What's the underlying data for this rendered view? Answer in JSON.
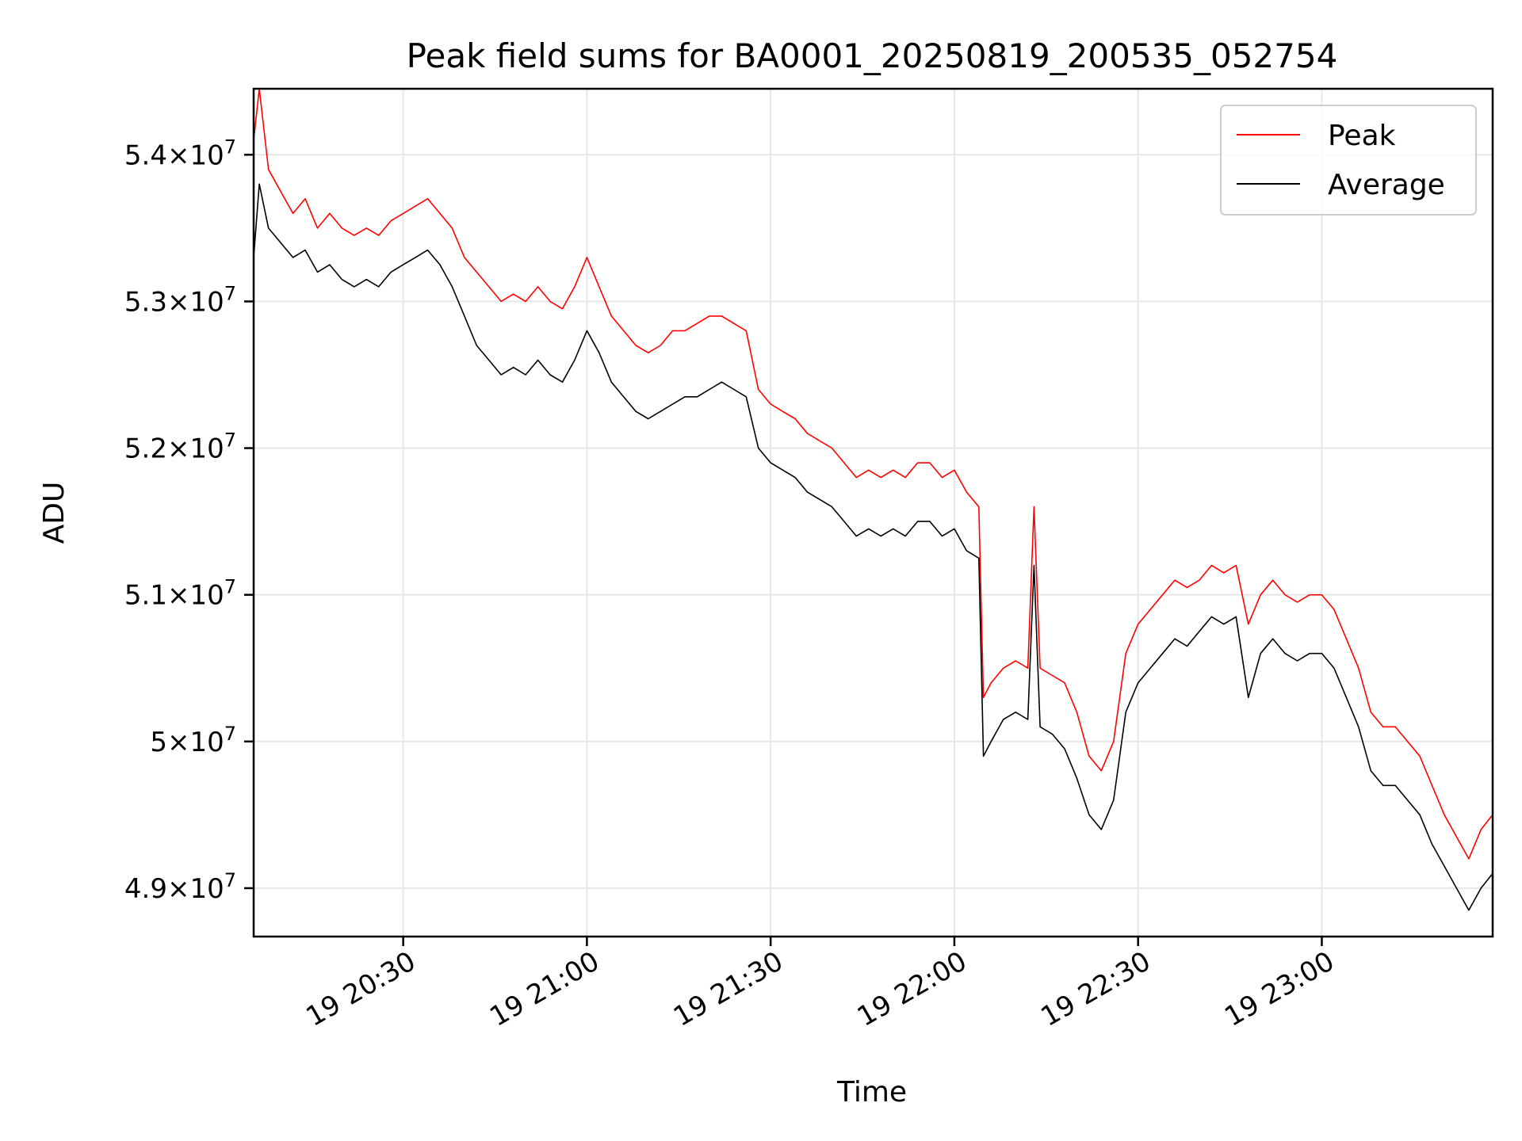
{
  "chart_data": {
    "type": "line",
    "title": "Peak field sums for BA0001_20250819_200535_052754",
    "xlabel": "Time",
    "ylabel": "ADU",
    "x_range": [
      "2025-08-19 20:05:35",
      "2025-08-19 23:27:54"
    ],
    "ylim": [
      48670000,
      54450000
    ],
    "x_ticks": [
      {
        "time": "2025-08-19 20:30",
        "label": "19 20:30"
      },
      {
        "time": "2025-08-19 21:00",
        "label": "19 21:00"
      },
      {
        "time": "2025-08-19 21:30",
        "label": "19 21:30"
      },
      {
        "time": "2025-08-19 22:00",
        "label": "19 22:00"
      },
      {
        "time": "2025-08-19 22:30",
        "label": "19 22:30"
      },
      {
        "time": "2025-08-19 23:00",
        "label": "19 23:00"
      }
    ],
    "y_ticks": [
      {
        "value": 49000000,
        "mantissa": "4.9",
        "exp": "7"
      },
      {
        "value": 50000000,
        "mantissa": "5",
        "exp": "7"
      },
      {
        "value": 51000000,
        "mantissa": "5.1",
        "exp": "7"
      },
      {
        "value": 52000000,
        "mantissa": "5.2",
        "exp": "7"
      },
      {
        "value": 53000000,
        "mantissa": "5.3",
        "exp": "7"
      },
      {
        "value": 54000000,
        "mantissa": "5.4",
        "exp": "7"
      }
    ],
    "grid": true,
    "legend_position": "top-right",
    "series": [
      {
        "name": "Peak",
        "color": "#ff0000",
        "points": [
          [
            "2025-08-19 20:05:35",
            54100000
          ],
          [
            "2025-08-19 20:06:30",
            54450000
          ],
          [
            "2025-08-19 20:08:00",
            53900000
          ],
          [
            "2025-08-19 20:10:00",
            53750000
          ],
          [
            "2025-08-19 20:12:00",
            53600000
          ],
          [
            "2025-08-19 20:14:00",
            53700000
          ],
          [
            "2025-08-19 20:16:00",
            53500000
          ],
          [
            "2025-08-19 20:18:00",
            53600000
          ],
          [
            "2025-08-19 20:20:00",
            53500000
          ],
          [
            "2025-08-19 20:22:00",
            53450000
          ],
          [
            "2025-08-19 20:24:00",
            53500000
          ],
          [
            "2025-08-19 20:26:00",
            53450000
          ],
          [
            "2025-08-19 20:28:00",
            53550000
          ],
          [
            "2025-08-19 20:30:00",
            53600000
          ],
          [
            "2025-08-19 20:32:00",
            53650000
          ],
          [
            "2025-08-19 20:34:00",
            53700000
          ],
          [
            "2025-08-19 20:36:00",
            53600000
          ],
          [
            "2025-08-19 20:38:00",
            53500000
          ],
          [
            "2025-08-19 20:40:00",
            53300000
          ],
          [
            "2025-08-19 20:42:00",
            53200000
          ],
          [
            "2025-08-19 20:44:00",
            53100000
          ],
          [
            "2025-08-19 20:46:00",
            53000000
          ],
          [
            "2025-08-19 20:48:00",
            53050000
          ],
          [
            "2025-08-19 20:50:00",
            53000000
          ],
          [
            "2025-08-19 20:52:00",
            53100000
          ],
          [
            "2025-08-19 20:54:00",
            53000000
          ],
          [
            "2025-08-19 20:56:00",
            52950000
          ],
          [
            "2025-08-19 20:58:00",
            53100000
          ],
          [
            "2025-08-19 21:00:00",
            53300000
          ],
          [
            "2025-08-19 21:02:00",
            53100000
          ],
          [
            "2025-08-19 21:04:00",
            52900000
          ],
          [
            "2025-08-19 21:06:00",
            52800000
          ],
          [
            "2025-08-19 21:08:00",
            52700000
          ],
          [
            "2025-08-19 21:10:00",
            52650000
          ],
          [
            "2025-08-19 21:12:00",
            52700000
          ],
          [
            "2025-08-19 21:14:00",
            52800000
          ],
          [
            "2025-08-19 21:16:00",
            52800000
          ],
          [
            "2025-08-19 21:18:00",
            52850000
          ],
          [
            "2025-08-19 21:20:00",
            52900000
          ],
          [
            "2025-08-19 21:22:00",
            52900000
          ],
          [
            "2025-08-19 21:24:00",
            52850000
          ],
          [
            "2025-08-19 21:26:00",
            52800000
          ],
          [
            "2025-08-19 21:28:00",
            52400000
          ],
          [
            "2025-08-19 21:30:00",
            52300000
          ],
          [
            "2025-08-19 21:32:00",
            52250000
          ],
          [
            "2025-08-19 21:34:00",
            52200000
          ],
          [
            "2025-08-19 21:36:00",
            52100000
          ],
          [
            "2025-08-19 21:38:00",
            52050000
          ],
          [
            "2025-08-19 21:40:00",
            52000000
          ],
          [
            "2025-08-19 21:42:00",
            51900000
          ],
          [
            "2025-08-19 21:44:00",
            51800000
          ],
          [
            "2025-08-19 21:46:00",
            51850000
          ],
          [
            "2025-08-19 21:48:00",
            51800000
          ],
          [
            "2025-08-19 21:50:00",
            51850000
          ],
          [
            "2025-08-19 21:52:00",
            51800000
          ],
          [
            "2025-08-19 21:54:00",
            51900000
          ],
          [
            "2025-08-19 21:56:00",
            51900000
          ],
          [
            "2025-08-19 21:58:00",
            51800000
          ],
          [
            "2025-08-19 22:00:00",
            51850000
          ],
          [
            "2025-08-19 22:02:00",
            51700000
          ],
          [
            "2025-08-19 22:04:00",
            51600000
          ],
          [
            "2025-08-19 22:04:45",
            50300000
          ],
          [
            "2025-08-19 22:06:00",
            50400000
          ],
          [
            "2025-08-19 22:08:00",
            50500000
          ],
          [
            "2025-08-19 22:10:00",
            50550000
          ],
          [
            "2025-08-19 22:12:00",
            50500000
          ],
          [
            "2025-08-19 22:13:00",
            51600000
          ],
          [
            "2025-08-19 22:14:00",
            50500000
          ],
          [
            "2025-08-19 22:16:00",
            50450000
          ],
          [
            "2025-08-19 22:18:00",
            50400000
          ],
          [
            "2025-08-19 22:20:00",
            50200000
          ],
          [
            "2025-08-19 22:22:00",
            49900000
          ],
          [
            "2025-08-19 22:24:00",
            49800000
          ],
          [
            "2025-08-19 22:26:00",
            50000000
          ],
          [
            "2025-08-19 22:28:00",
            50600000
          ],
          [
            "2025-08-19 22:30:00",
            50800000
          ],
          [
            "2025-08-19 22:32:00",
            50900000
          ],
          [
            "2025-08-19 22:34:00",
            51000000
          ],
          [
            "2025-08-19 22:36:00",
            51100000
          ],
          [
            "2025-08-19 22:38:00",
            51050000
          ],
          [
            "2025-08-19 22:40:00",
            51100000
          ],
          [
            "2025-08-19 22:42:00",
            51200000
          ],
          [
            "2025-08-19 22:44:00",
            51150000
          ],
          [
            "2025-08-19 22:46:00",
            51200000
          ],
          [
            "2025-08-19 22:48:00",
            50800000
          ],
          [
            "2025-08-19 22:50:00",
            51000000
          ],
          [
            "2025-08-19 22:52:00",
            51100000
          ],
          [
            "2025-08-19 22:54:00",
            51000000
          ],
          [
            "2025-08-19 22:56:00",
            50950000
          ],
          [
            "2025-08-19 22:58:00",
            51000000
          ],
          [
            "2025-08-19 23:00:00",
            51000000
          ],
          [
            "2025-08-19 23:02:00",
            50900000
          ],
          [
            "2025-08-19 23:04:00",
            50700000
          ],
          [
            "2025-08-19 23:06:00",
            50500000
          ],
          [
            "2025-08-19 23:08:00",
            50200000
          ],
          [
            "2025-08-19 23:10:00",
            50100000
          ],
          [
            "2025-08-19 23:12:00",
            50100000
          ],
          [
            "2025-08-19 23:14:00",
            50000000
          ],
          [
            "2025-08-19 23:16:00",
            49900000
          ],
          [
            "2025-08-19 23:18:00",
            49700000
          ],
          [
            "2025-08-19 23:20:00",
            49500000
          ],
          [
            "2025-08-19 23:22:00",
            49350000
          ],
          [
            "2025-08-19 23:24:00",
            49200000
          ],
          [
            "2025-08-19 23:26:00",
            49400000
          ],
          [
            "2025-08-19 23:27:54",
            49500000
          ]
        ]
      },
      {
        "name": "Average",
        "color": "#000000",
        "points": [
          [
            "2025-08-19 20:05:35",
            53300000
          ],
          [
            "2025-08-19 20:06:30",
            53800000
          ],
          [
            "2025-08-19 20:08:00",
            53500000
          ],
          [
            "2025-08-19 20:10:00",
            53400000
          ],
          [
            "2025-08-19 20:12:00",
            53300000
          ],
          [
            "2025-08-19 20:14:00",
            53350000
          ],
          [
            "2025-08-19 20:16:00",
            53200000
          ],
          [
            "2025-08-19 20:18:00",
            53250000
          ],
          [
            "2025-08-19 20:20:00",
            53150000
          ],
          [
            "2025-08-19 20:22:00",
            53100000
          ],
          [
            "2025-08-19 20:24:00",
            53150000
          ],
          [
            "2025-08-19 20:26:00",
            53100000
          ],
          [
            "2025-08-19 20:28:00",
            53200000
          ],
          [
            "2025-08-19 20:30:00",
            53250000
          ],
          [
            "2025-08-19 20:32:00",
            53300000
          ],
          [
            "2025-08-19 20:34:00",
            53350000
          ],
          [
            "2025-08-19 20:36:00",
            53250000
          ],
          [
            "2025-08-19 20:38:00",
            53100000
          ],
          [
            "2025-08-19 20:40:00",
            52900000
          ],
          [
            "2025-08-19 20:42:00",
            52700000
          ],
          [
            "2025-08-19 20:44:00",
            52600000
          ],
          [
            "2025-08-19 20:46:00",
            52500000
          ],
          [
            "2025-08-19 20:48:00",
            52550000
          ],
          [
            "2025-08-19 20:50:00",
            52500000
          ],
          [
            "2025-08-19 20:52:00",
            52600000
          ],
          [
            "2025-08-19 20:54:00",
            52500000
          ],
          [
            "2025-08-19 20:56:00",
            52450000
          ],
          [
            "2025-08-19 20:58:00",
            52600000
          ],
          [
            "2025-08-19 21:00:00",
            52800000
          ],
          [
            "2025-08-19 21:02:00",
            52650000
          ],
          [
            "2025-08-19 21:04:00",
            52450000
          ],
          [
            "2025-08-19 21:06:00",
            52350000
          ],
          [
            "2025-08-19 21:08:00",
            52250000
          ],
          [
            "2025-08-19 21:10:00",
            52200000
          ],
          [
            "2025-08-19 21:12:00",
            52250000
          ],
          [
            "2025-08-19 21:14:00",
            52300000
          ],
          [
            "2025-08-19 21:16:00",
            52350000
          ],
          [
            "2025-08-19 21:18:00",
            52350000
          ],
          [
            "2025-08-19 21:20:00",
            52400000
          ],
          [
            "2025-08-19 21:22:00",
            52450000
          ],
          [
            "2025-08-19 21:24:00",
            52400000
          ],
          [
            "2025-08-19 21:26:00",
            52350000
          ],
          [
            "2025-08-19 21:28:00",
            52000000
          ],
          [
            "2025-08-19 21:30:00",
            51900000
          ],
          [
            "2025-08-19 21:32:00",
            51850000
          ],
          [
            "2025-08-19 21:34:00",
            51800000
          ],
          [
            "2025-08-19 21:36:00",
            51700000
          ],
          [
            "2025-08-19 21:38:00",
            51650000
          ],
          [
            "2025-08-19 21:40:00",
            51600000
          ],
          [
            "2025-08-19 21:42:00",
            51500000
          ],
          [
            "2025-08-19 21:44:00",
            51400000
          ],
          [
            "2025-08-19 21:46:00",
            51450000
          ],
          [
            "2025-08-19 21:48:00",
            51400000
          ],
          [
            "2025-08-19 21:50:00",
            51450000
          ],
          [
            "2025-08-19 21:52:00",
            51400000
          ],
          [
            "2025-08-19 21:54:00",
            51500000
          ],
          [
            "2025-08-19 21:56:00",
            51500000
          ],
          [
            "2025-08-19 21:58:00",
            51400000
          ],
          [
            "2025-08-19 22:00:00",
            51450000
          ],
          [
            "2025-08-19 22:02:00",
            51300000
          ],
          [
            "2025-08-19 22:04:00",
            51250000
          ],
          [
            "2025-08-19 22:04:45",
            49900000
          ],
          [
            "2025-08-19 22:06:00",
            50000000
          ],
          [
            "2025-08-19 22:08:00",
            50150000
          ],
          [
            "2025-08-19 22:10:00",
            50200000
          ],
          [
            "2025-08-19 22:12:00",
            50150000
          ],
          [
            "2025-08-19 22:13:00",
            51200000
          ],
          [
            "2025-08-19 22:14:00",
            50100000
          ],
          [
            "2025-08-19 22:16:00",
            50050000
          ],
          [
            "2025-08-19 22:18:00",
            49950000
          ],
          [
            "2025-08-19 22:20:00",
            49750000
          ],
          [
            "2025-08-19 22:22:00",
            49500000
          ],
          [
            "2025-08-19 22:24:00",
            49400000
          ],
          [
            "2025-08-19 22:26:00",
            49600000
          ],
          [
            "2025-08-19 22:28:00",
            50200000
          ],
          [
            "2025-08-19 22:30:00",
            50400000
          ],
          [
            "2025-08-19 22:32:00",
            50500000
          ],
          [
            "2025-08-19 22:34:00",
            50600000
          ],
          [
            "2025-08-19 22:36:00",
            50700000
          ],
          [
            "2025-08-19 22:38:00",
            50650000
          ],
          [
            "2025-08-19 22:40:00",
            50750000
          ],
          [
            "2025-08-19 22:42:00",
            50850000
          ],
          [
            "2025-08-19 22:44:00",
            50800000
          ],
          [
            "2025-08-19 22:46:00",
            50850000
          ],
          [
            "2025-08-19 22:48:00",
            50300000
          ],
          [
            "2025-08-19 22:50:00",
            50600000
          ],
          [
            "2025-08-19 22:52:00",
            50700000
          ],
          [
            "2025-08-19 22:54:00",
            50600000
          ],
          [
            "2025-08-19 22:56:00",
            50550000
          ],
          [
            "2025-08-19 22:58:00",
            50600000
          ],
          [
            "2025-08-19 23:00:00",
            50600000
          ],
          [
            "2025-08-19 23:02:00",
            50500000
          ],
          [
            "2025-08-19 23:04:00",
            50300000
          ],
          [
            "2025-08-19 23:06:00",
            50100000
          ],
          [
            "2025-08-19 23:08:00",
            49800000
          ],
          [
            "2025-08-19 23:10:00",
            49700000
          ],
          [
            "2025-08-19 23:12:00",
            49700000
          ],
          [
            "2025-08-19 23:14:00",
            49600000
          ],
          [
            "2025-08-19 23:16:00",
            49500000
          ],
          [
            "2025-08-19 23:18:00",
            49300000
          ],
          [
            "2025-08-19 23:20:00",
            49150000
          ],
          [
            "2025-08-19 23:22:00",
            49000000
          ],
          [
            "2025-08-19 23:24:00",
            48850000
          ],
          [
            "2025-08-19 23:26:00",
            49000000
          ],
          [
            "2025-08-19 23:27:54",
            49100000
          ]
        ]
      }
    ]
  }
}
